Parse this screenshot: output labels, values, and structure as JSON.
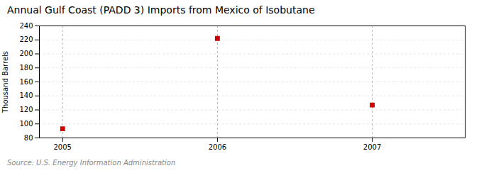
{
  "chart_data": {
    "type": "scatter",
    "title": "Annual Gulf Coast (PADD 3) Imports from Mexico of Isobutane",
    "ylabel": "Thousand Barrels",
    "source": "Source: U.S. Energy Information Administration",
    "x": [
      2005,
      2006,
      2007
    ],
    "values": [
      93,
      222,
      127
    ],
    "color": "#cc0000",
    "marker": "square",
    "xlim": [
      2004.85,
      2007.6
    ],
    "xticks": [
      2005,
      2006,
      2007
    ],
    "ylim": [
      80,
      240
    ],
    "yticks": [
      80,
      100,
      120,
      140,
      160,
      180,
      200,
      220,
      240
    ],
    "grid": true
  }
}
